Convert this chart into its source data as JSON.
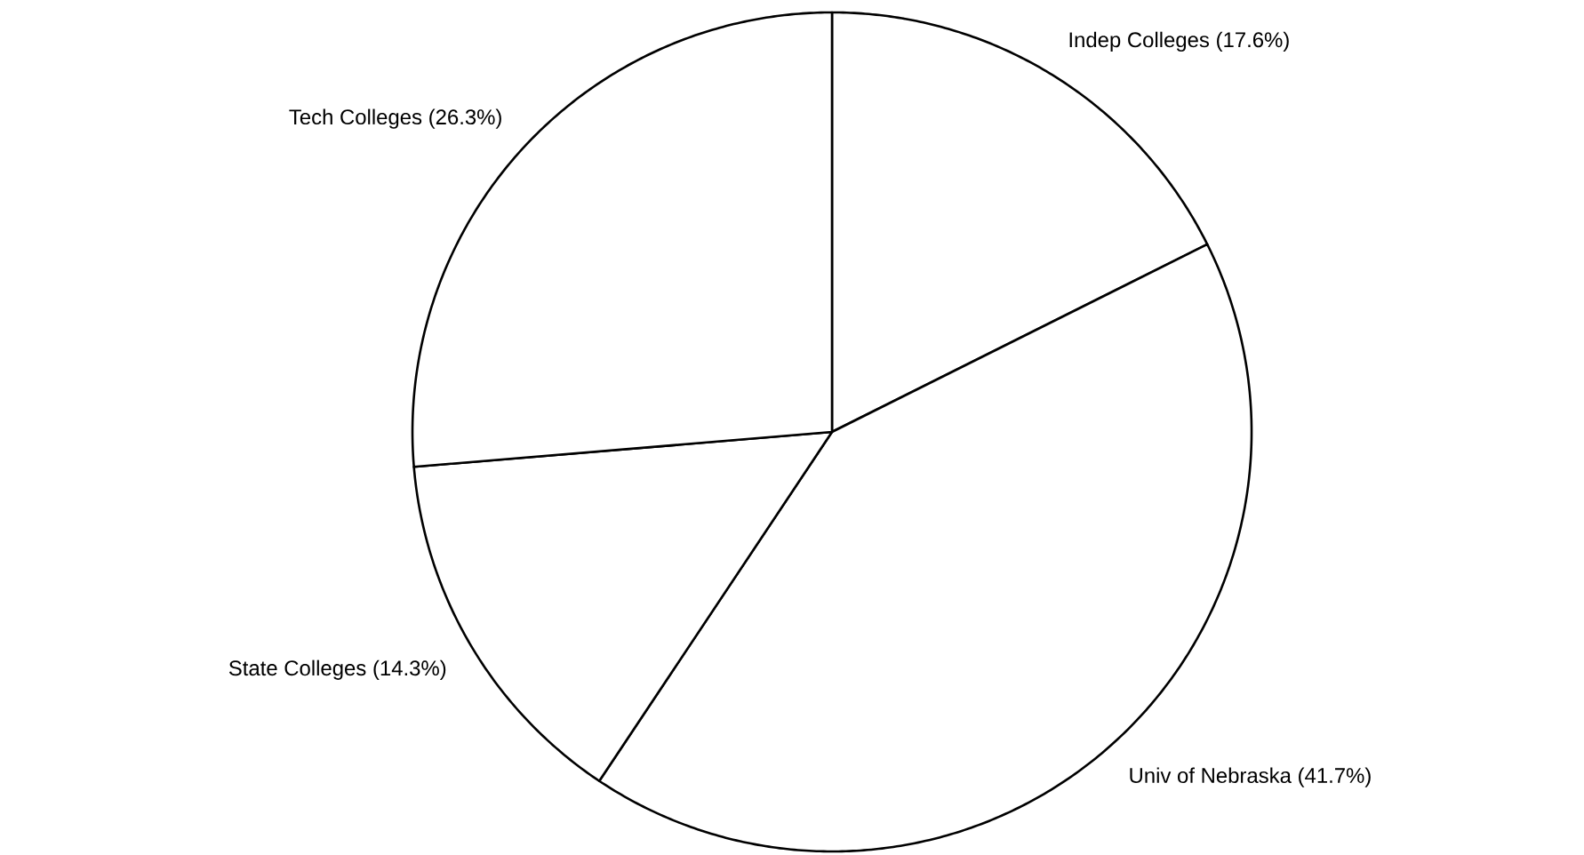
{
  "chart_data": {
    "type": "pie",
    "categories": [
      "Indep Colleges",
      "Univ of Nebraska",
      "State Colleges",
      "Tech Colleges"
    ],
    "values": [
      17.6,
      41.7,
      14.3,
      26.3
    ],
    "value_labels": [
      "(17.6%)",
      "(41.7%)",
      "(14.3%)",
      "(26.3%)"
    ],
    "colors": [
      "#ffffff",
      "#ffffff",
      "#ffffff",
      "#ffffff"
    ]
  }
}
